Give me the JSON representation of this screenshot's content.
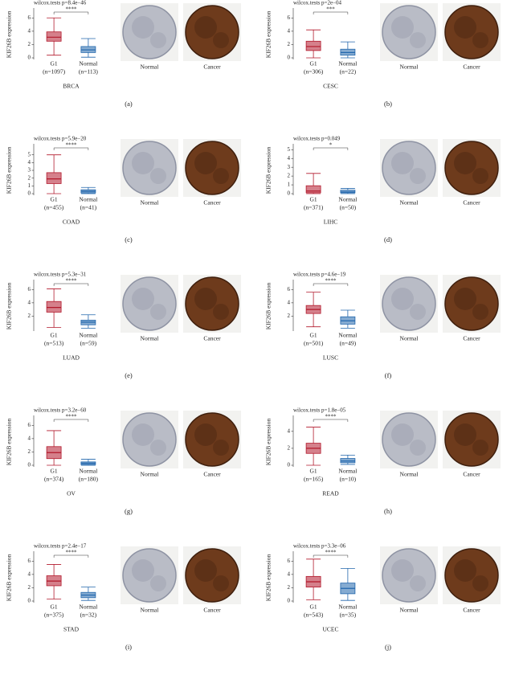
{
  "chart_data": [
    {
      "type": "box",
      "title": "wilcox.tests p=8.4e−46",
      "significance": "****",
      "ylabel": "KIF26B expression",
      "xlabel": "BRCA",
      "panel_label": "(a)",
      "categories": [
        "G1",
        "Normal"
      ],
      "n_labels": [
        "(n=1097)",
        "(n=113)"
      ],
      "ylim": [
        0,
        7
      ],
      "yticks": [
        0,
        2,
        4,
        6
      ],
      "boxes": [
        {
          "color": "#b2182b",
          "whisker_low": 0.4,
          "q1": 2.5,
          "median": 3.1,
          "q3": 3.9,
          "whisker_high": 6.0
        },
        {
          "color": "#2166ac",
          "whisker_low": 0.1,
          "q1": 0.8,
          "median": 1.2,
          "q3": 1.7,
          "whisker_high": 2.9
        }
      ],
      "image_captions": [
        "Normal",
        "Cancer"
      ]
    },
    {
      "type": "box",
      "title": "wilcox.tests p=2e−04",
      "significance": "***",
      "ylabel": "KIF26B expression",
      "xlabel": "CESC",
      "panel_label": "(b)",
      "categories": [
        "G1",
        "Normal"
      ],
      "n_labels": [
        "(n=306)",
        "(n=22)"
      ],
      "ylim": [
        0,
        7
      ],
      "yticks": [
        0,
        2,
        4,
        6
      ],
      "boxes": [
        {
          "color": "#b2182b",
          "whisker_low": 0,
          "q1": 1.1,
          "median": 1.7,
          "q3": 2.5,
          "whisker_high": 4.2
        },
        {
          "color": "#2166ac",
          "whisker_low": 0,
          "q1": 0.4,
          "median": 0.8,
          "q3": 1.3,
          "whisker_high": 2.4
        }
      ],
      "image_captions": [
        "Normal",
        "Cancer"
      ]
    },
    {
      "type": "box",
      "title": "wilcox.tests p=5.9e−20",
      "significance": "****",
      "ylabel": "KIF26B expression",
      "xlabel": "COAD",
      "panel_label": "(c)",
      "categories": [
        "G1",
        "Normal"
      ],
      "n_labels": [
        "(n=455)",
        "(n=41)"
      ],
      "ylim": [
        0,
        6
      ],
      "yticks": [
        0,
        1,
        2,
        3,
        4,
        5
      ],
      "boxes": [
        {
          "color": "#b2182b",
          "whisker_low": 0,
          "q1": 1.3,
          "median": 1.9,
          "q3": 2.7,
          "whisker_high": 5.0
        },
        {
          "color": "#2166ac",
          "whisker_low": 0,
          "q1": 0.1,
          "median": 0.3,
          "q3": 0.5,
          "whisker_high": 0.8
        }
      ],
      "image_captions": [
        "Normal",
        "Cancer"
      ]
    },
    {
      "type": "box",
      "title": "wilcox.tests p=0.049",
      "significance": "*",
      "ylabel": "KIF26B expression",
      "xlabel": "LIHC",
      "panel_label": "(d)",
      "categories": [
        "G1",
        "Normal"
      ],
      "n_labels": [
        "(n=371)",
        "(n=50)"
      ],
      "ylim": [
        0,
        5.3
      ],
      "yticks": [
        0,
        1,
        2,
        3,
        4,
        5
      ],
      "boxes": [
        {
          "color": "#b2182b",
          "whisker_low": 0,
          "q1": 0.1,
          "median": 0.3,
          "q3": 0.9,
          "whisker_high": 2.3
        },
        {
          "color": "#2166ac",
          "whisker_low": 0,
          "q1": 0.1,
          "median": 0.2,
          "q3": 0.4,
          "whisker_high": 0.6
        }
      ],
      "image_captions": [
        "Normal",
        "Cancer"
      ]
    },
    {
      "type": "box",
      "title": "wilcox.tests p=5.3e−31",
      "significance": "****",
      "ylabel": "KIF26B expression",
      "xlabel": "LUAD",
      "panel_label": "(e)",
      "categories": [
        "G1",
        "Normal"
      ],
      "n_labels": [
        "(n=513)",
        "(n=59)"
      ],
      "ylim": [
        0,
        7
      ],
      "yticks": [
        2,
        4,
        6
      ],
      "boxes": [
        {
          "color": "#b2182b",
          "whisker_low": 0.3,
          "q1": 2.6,
          "median": 3.3,
          "q3": 4.2,
          "whisker_high": 6.1
        },
        {
          "color": "#2166ac",
          "whisker_low": 0.2,
          "q1": 0.7,
          "median": 1.1,
          "q3": 1.4,
          "whisker_high": 2.2
        }
      ],
      "image_captions": [
        "Normal",
        "Cancer"
      ]
    },
    {
      "type": "box",
      "title": "wilcox.tests p=4.6e−19",
      "significance": "****",
      "ylabel": "KIF26B expression",
      "xlabel": "LUSC",
      "panel_label": "(f)",
      "categories": [
        "G1",
        "Normal"
      ],
      "n_labels": [
        "(n=501)",
        "(n=49)"
      ],
      "ylim": [
        0,
        7
      ],
      "yticks": [
        2,
        4,
        6
      ],
      "boxes": [
        {
          "color": "#b2182b",
          "whisker_low": 0.4,
          "q1": 2.4,
          "median": 3.0,
          "q3": 3.6,
          "whisker_high": 5.6
        },
        {
          "color": "#2166ac",
          "whisker_low": 0.2,
          "q1": 0.8,
          "median": 1.3,
          "q3": 1.9,
          "whisker_high": 2.9
        }
      ],
      "image_captions": [
        "Normal",
        "Cancer"
      ]
    },
    {
      "type": "box",
      "title": "wilcox.tests p=3.2e−60",
      "significance": "****",
      "ylabel": "KIF26B expression",
      "xlabel": "OV",
      "panel_label": "(g)",
      "categories": [
        "G1",
        "Normal"
      ],
      "n_labels": [
        "(n=374)",
        "(n=180)"
      ],
      "ylim": [
        0,
        7
      ],
      "yticks": [
        0,
        2,
        4,
        6
      ],
      "boxes": [
        {
          "color": "#b2182b",
          "whisker_low": 0,
          "q1": 1.0,
          "median": 1.9,
          "q3": 2.8,
          "whisker_high": 5.2
        },
        {
          "color": "#2166ac",
          "whisker_low": 0,
          "q1": 0.1,
          "median": 0.3,
          "q3": 0.5,
          "whisker_high": 0.9
        }
      ],
      "image_captions": [
        "Normal",
        "Cancer"
      ]
    },
    {
      "type": "box",
      "title": "wilcox.tests p=1.8e−05",
      "significance": "****",
      "ylabel": "KIF26B expression",
      "xlabel": "READ",
      "panel_label": "(h)",
      "categories": [
        "G1",
        "Normal"
      ],
      "n_labels": [
        "(n=165)",
        "(n=10)"
      ],
      "ylim": [
        0,
        5.5
      ],
      "yticks": [
        0,
        2,
        4
      ],
      "boxes": [
        {
          "color": "#b2182b",
          "whisker_low": 0,
          "q1": 1.4,
          "median": 2.0,
          "q3": 2.6,
          "whisker_high": 4.5
        },
        {
          "color": "#2166ac",
          "whisker_low": 0.1,
          "q1": 0.3,
          "median": 0.5,
          "q3": 0.8,
          "whisker_high": 1.2
        }
      ],
      "image_captions": [
        "Normal",
        "Cancer"
      ]
    },
    {
      "type": "box",
      "title": "wilcox.tests p=2.4e−17",
      "significance": "****",
      "ylabel": "KIF26B expression",
      "xlabel": "STAD",
      "panel_label": "(i)",
      "categories": [
        "G1",
        "Normal"
      ],
      "n_labels": [
        "(n=375)",
        "(n=32)"
      ],
      "ylim": [
        0,
        7
      ],
      "yticks": [
        0,
        2,
        4,
        6
      ],
      "boxes": [
        {
          "color": "#b2182b",
          "whisker_low": 0.3,
          "q1": 2.3,
          "median": 3.0,
          "q3": 3.8,
          "whisker_high": 5.5
        },
        {
          "color": "#2166ac",
          "whisker_low": 0.1,
          "q1": 0.5,
          "median": 0.9,
          "q3": 1.3,
          "whisker_high": 2.1
        }
      ],
      "image_captions": [
        "Normal",
        "Cancer"
      ]
    },
    {
      "type": "box",
      "title": "wilcox.tests p=3.3e−06",
      "significance": "****",
      "ylabel": "KIF26B expression",
      "xlabel": "UCEC",
      "panel_label": "(j)",
      "categories": [
        "G1",
        "Normal"
      ],
      "n_labels": [
        "(n=543)",
        "(n=35)"
      ],
      "ylim": [
        0,
        7
      ],
      "yticks": [
        0,
        2,
        4,
        6
      ],
      "boxes": [
        {
          "color": "#b2182b",
          "whisker_low": 0.2,
          "q1": 2.1,
          "median": 2.9,
          "q3": 3.7,
          "whisker_high": 6.3
        },
        {
          "color": "#2166ac",
          "whisker_low": 0.1,
          "q1": 1.1,
          "median": 1.9,
          "q3": 2.7,
          "whisker_high": 4.9
        }
      ],
      "image_captions": [
        "Normal",
        "Cancer"
      ]
    }
  ]
}
